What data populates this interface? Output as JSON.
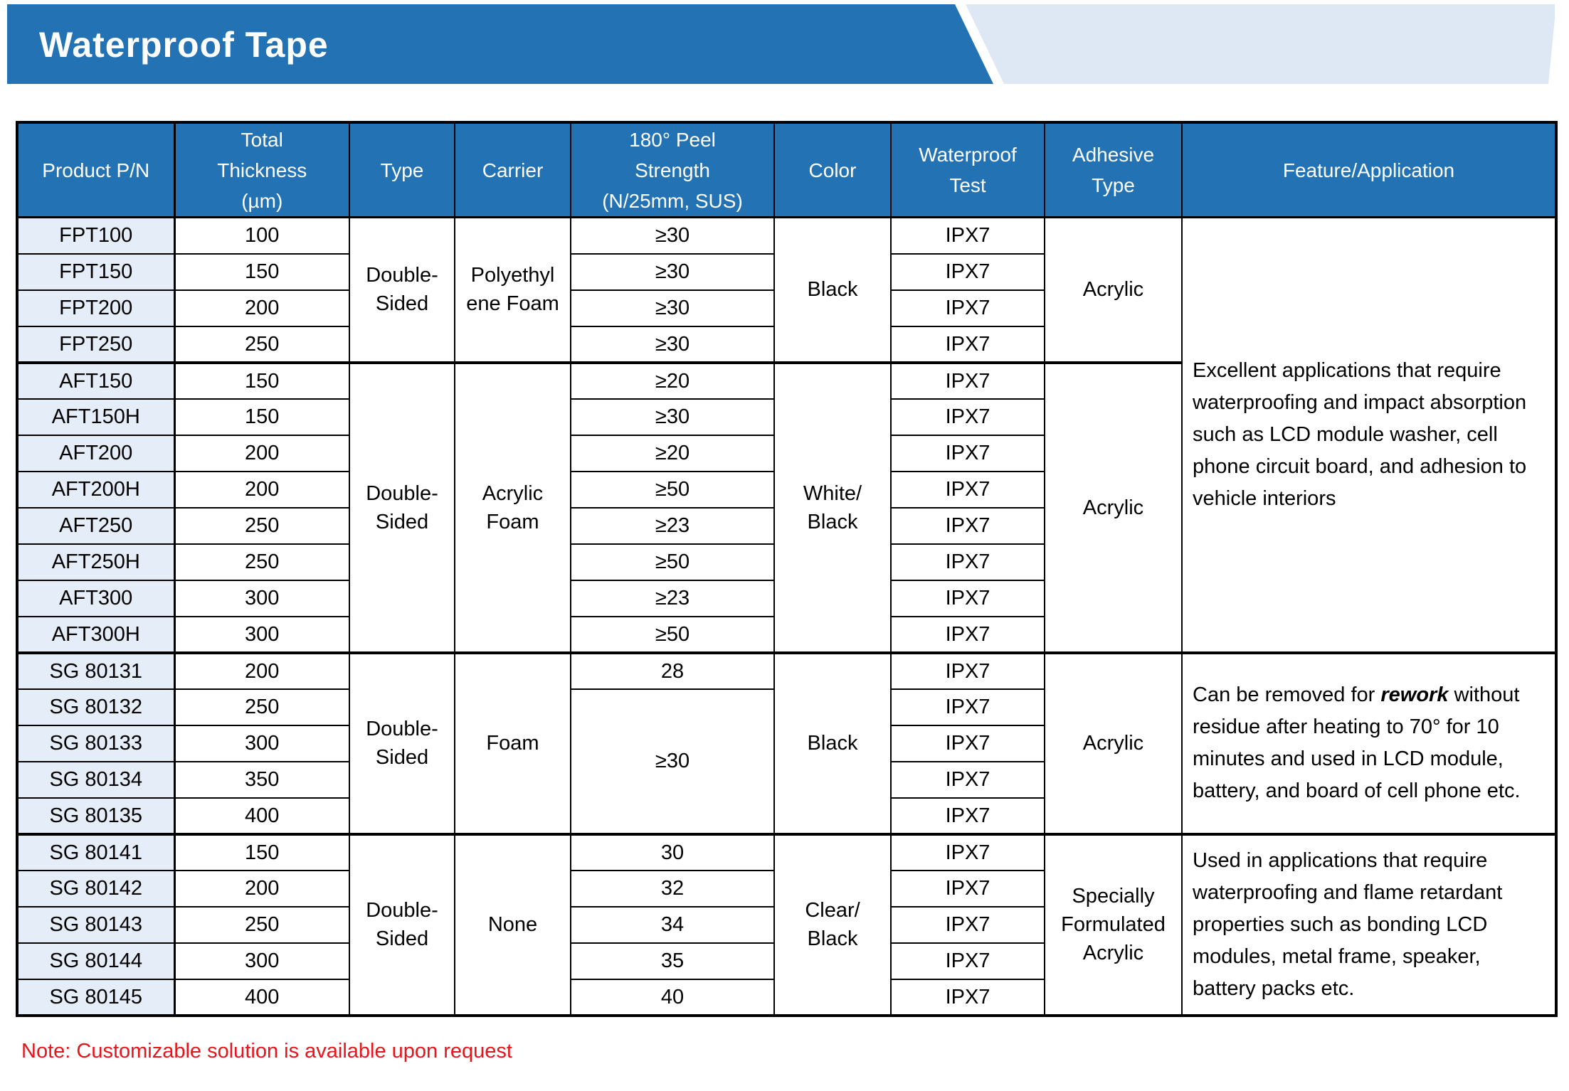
{
  "banner": {
    "title": "Waterproof Tape"
  },
  "colors": {
    "banner_blue": "#2272b4",
    "banner_accent_light_blue": "#dde8f4",
    "table_header_blue": "#2272b4",
    "product_cell_light_blue": "#e4edf8",
    "note_red": "#e8141c",
    "border_black": "#000000"
  },
  "table": {
    "header_keys": [
      "pn",
      "thickness",
      "type",
      "carrier",
      "peel",
      "color",
      "test",
      "adhesive",
      "feature"
    ],
    "headers": [
      "Product P/N",
      "Total\nThickness\n(µm)",
      "Type",
      "Carrier",
      "180° Peel\nStrength\n(N/25mm, SUS)",
      "Color",
      "Waterproof\nTest",
      "Adhesive\nType",
      "Feature/Application"
    ],
    "rows": [
      {
        "pn": "FPT100",
        "thickness": "100",
        "peel": "≥30",
        "test": "IPX7"
      },
      {
        "pn": "FPT150",
        "thickness": "150",
        "peel": "≥30",
        "test": "IPX7"
      },
      {
        "pn": "FPT200",
        "thickness": "200",
        "peel": "≥30",
        "test": "IPX7"
      },
      {
        "pn": "FPT250",
        "thickness": "250",
        "peel": "≥30",
        "test": "IPX7"
      },
      {
        "pn": "AFT150",
        "thickness": "150",
        "peel": "≥20",
        "test": "IPX7"
      },
      {
        "pn": "AFT150H",
        "thickness": "150",
        "peel": "≥30",
        "test": "IPX7"
      },
      {
        "pn": "AFT200",
        "thickness": "200",
        "peel": "≥20",
        "test": "IPX7"
      },
      {
        "pn": "AFT200H",
        "thickness": "200",
        "peel": "≥50",
        "test": "IPX7"
      },
      {
        "pn": "AFT250",
        "thickness": "250",
        "peel": "≥23",
        "test": "IPX7"
      },
      {
        "pn": "AFT250H",
        "thickness": "250",
        "peel": "≥50",
        "test": "IPX7"
      },
      {
        "pn": "AFT300",
        "thickness": "300",
        "peel": "≥23",
        "test": "IPX7"
      },
      {
        "pn": "AFT300H",
        "thickness": "300",
        "peel": "≥50",
        "test": "IPX7"
      },
      {
        "pn": "SG 80131",
        "thickness": "200",
        "peel": "28",
        "test": "IPX7"
      },
      {
        "pn": "SG 80132",
        "thickness": "250",
        "peel": "≥30",
        "peel_span": 4,
        "test": "IPX7"
      },
      {
        "pn": "SG 80133",
        "thickness": "300",
        "test": "IPX7"
      },
      {
        "pn": "SG 80134",
        "thickness": "350",
        "test": "IPX7"
      },
      {
        "pn": "SG 80135",
        "thickness": "400",
        "test": "IPX7"
      },
      {
        "pn": "SG 80141",
        "thickness": "150",
        "peel": "30",
        "test": "IPX7"
      },
      {
        "pn": "SG 80142",
        "thickness": "200",
        "peel": "32",
        "test": "IPX7"
      },
      {
        "pn": "SG 80143",
        "thickness": "250",
        "peel": "34",
        "test": "IPX7"
      },
      {
        "pn": "SG 80144",
        "thickness": "300",
        "peel": "35",
        "test": "IPX7"
      },
      {
        "pn": "SG 80145",
        "thickness": "400",
        "peel": "40",
        "test": "IPX7"
      }
    ],
    "group_starts": [
      4,
      12,
      17
    ],
    "spans": {
      "type": [
        {
          "start": 0,
          "span": 4,
          "text": "Double-\nSided"
        },
        {
          "start": 4,
          "span": 8,
          "text": "Double-\nSided"
        },
        {
          "start": 12,
          "span": 5,
          "text": "Double-\nSided"
        },
        {
          "start": 17,
          "span": 5,
          "text": "Double-\nSided"
        }
      ],
      "carrier": [
        {
          "start": 0,
          "span": 4,
          "text": "Polyethyl\nene Foam"
        },
        {
          "start": 4,
          "span": 8,
          "text": "Acrylic\nFoam"
        },
        {
          "start": 12,
          "span": 5,
          "text": "Foam"
        },
        {
          "start": 17,
          "span": 5,
          "text": "None"
        }
      ],
      "color": [
        {
          "start": 0,
          "span": 4,
          "text": "Black"
        },
        {
          "start": 4,
          "span": 8,
          "text": "White/\nBlack"
        },
        {
          "start": 12,
          "span": 5,
          "text": "Black"
        },
        {
          "start": 17,
          "span": 5,
          "text": "Clear/\nBlack"
        }
      ],
      "adhesive": [
        {
          "start": 0,
          "span": 4,
          "text": "Acrylic"
        },
        {
          "start": 4,
          "span": 8,
          "text": "Acrylic"
        },
        {
          "start": 12,
          "span": 5,
          "text": "Acrylic"
        },
        {
          "start": 17,
          "span": 5,
          "text": "Specially\nFormulated\nAcrylic"
        }
      ],
      "feature": [
        {
          "start": 0,
          "span": 12,
          "segments": [
            {
              "text": "Excellent applications that require waterproofing and impact absorption such as LCD module washer, cell phone circuit board, and adhesion to vehicle interiors"
            }
          ]
        },
        {
          "start": 12,
          "span": 5,
          "segments": [
            {
              "text": "Can be removed for "
            },
            {
              "text": "rework",
              "em": true
            },
            {
              "text": " without residue after heating to 70° for 10 minutes and used in LCD module, battery, and board of cell phone etc."
            }
          ]
        },
        {
          "start": 17,
          "span": 5,
          "segments": [
            {
              "text": "Used in applications that require waterproofing and flame retardant properties such as bonding LCD modules, metal frame, speaker, battery packs etc."
            }
          ]
        }
      ]
    }
  },
  "note": {
    "text": "Note: Customizable solution is available upon request"
  }
}
